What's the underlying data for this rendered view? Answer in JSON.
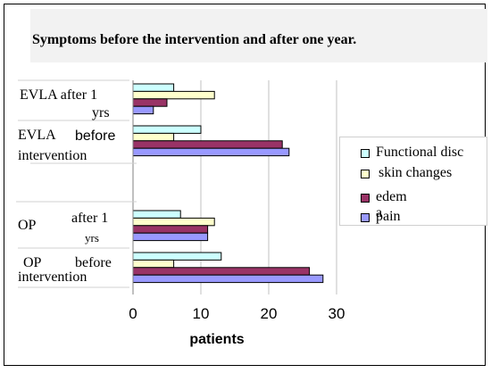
{
  "chart_data": {
    "type": "bar",
    "orientation": "horizontal",
    "title": "Symptoms before the intervention and after one year.",
    "xlabel": "patients",
    "ylabel": "",
    "xlim": [
      0,
      30
    ],
    "xticks": [
      0,
      10,
      20,
      30
    ],
    "grid": true,
    "legend_position": "right",
    "categories": [
      "EVLA after 1 yrs",
      "EVLA before intervention",
      "OP after 1 yrs",
      "OP before intervention"
    ],
    "series": [
      {
        "name": "Functional disc",
        "color": "#ccffff",
        "values": [
          6,
          10,
          7,
          13
        ]
      },
      {
        "name": "skin changes",
        "color": "#ffffcc",
        "values": [
          12,
          6,
          12,
          6
        ]
      },
      {
        "name": "edem",
        "color": "#993366",
        "values": [
          5,
          22,
          11,
          26
        ]
      },
      {
        "name": "pain",
        "color": "#9999ff",
        "values": [
          3,
          23,
          11,
          28
        ]
      }
    ]
  },
  "labels": {
    "evla_after_line1": "EVLA after 1",
    "evla_after_line2": "yrs",
    "evla_before_line1a": "EVLA",
    "evla_before_line1b": "before",
    "evla_before_line2": "intervention",
    "op_after_line1a": "OP",
    "op_after_line1b": "after 1",
    "op_after_line2": "yrs",
    "op_before_line1a": "OP",
    "op_before_line1b": "before",
    "op_before_line2": "intervention",
    "legend_pain_fragment": "a"
  }
}
